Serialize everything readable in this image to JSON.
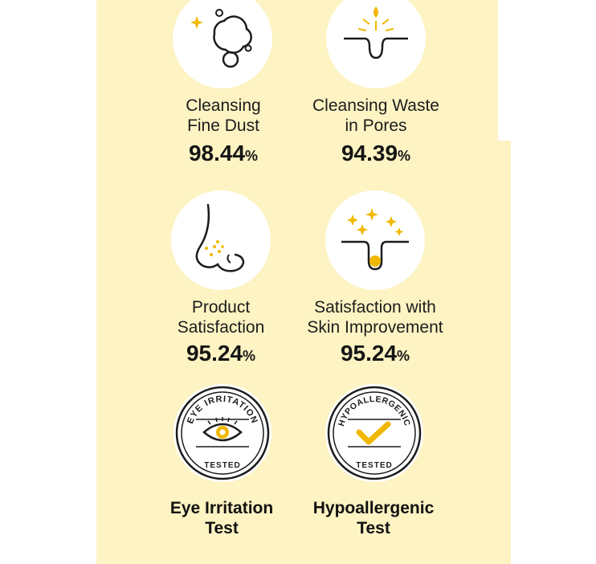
{
  "features": [
    {
      "label_line1": "Cleansing",
      "label_line2": "Fine Dust",
      "value": "98.44",
      "unit": "%",
      "icon": "bubbles-icon"
    },
    {
      "label_line1": "Cleansing Waste",
      "label_line2": "in Pores",
      "value": "94.39",
      "unit": "%",
      "icon": "pore-cleansing-icon"
    },
    {
      "label_line1": "Product",
      "label_line2": "Satisfaction",
      "value": "95.24",
      "unit": "%",
      "icon": "nose-icon"
    },
    {
      "label_line1": "Satisfaction with",
      "label_line2": "Skin Improvement",
      "value": "95.24",
      "unit": "%",
      "icon": "skin-sparkle-icon"
    }
  ],
  "badges": [
    {
      "seal_text": "EYE IRRITATION",
      "seal_bottom": "TESTED",
      "title_line1": "Eye Irritation",
      "title_line2": "Test",
      "icon": "eye-irritation-seal-icon"
    },
    {
      "seal_text": "HYPOALLERGENIC",
      "seal_bottom": "TESTED",
      "title_line1": "Hypoallergenic",
      "title_line2": "Test",
      "icon": "hypoallergenic-seal-icon"
    }
  ],
  "colors": {
    "panel": "#fdf3c3",
    "accent": "#f0b800",
    "ink": "#1c1c1c"
  }
}
